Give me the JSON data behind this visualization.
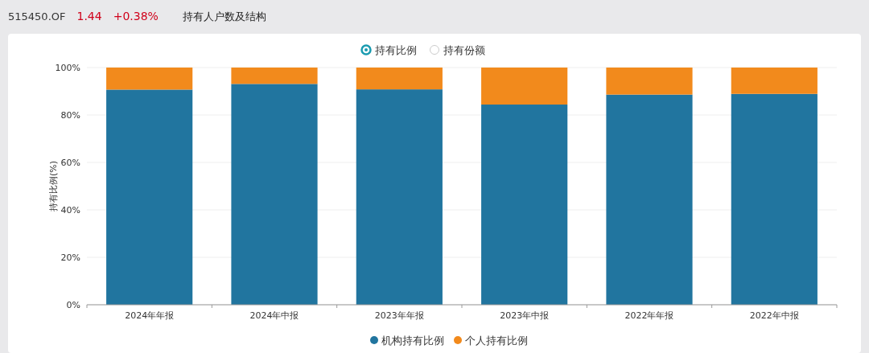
{
  "chart_data": {
    "type": "bar",
    "stacked": true,
    "title": "持有人户数及结构",
    "subtitle": "515450.OF",
    "annotations": [
      "1.44",
      "+0.38%",
      "持有比例",
      "持有份额"
    ],
    "ylabel": "持有比例(%)",
    "categories": [
      "2024年年报",
      "2024年中报",
      "2023年年报",
      "2023年中报",
      "2022年年报",
      "2022年中报"
    ],
    "series": [
      {
        "name": "机构持有比例",
        "color": "#21759f",
        "values": [
          90.7,
          93.1,
          90.8,
          84.4,
          88.6,
          88.9
        ]
      },
      {
        "name": "个人持有比例",
        "color": "#f28a1c",
        "values": [
          9.3,
          6.9,
          9.2,
          15.6,
          11.4,
          11.1
        ]
      }
    ],
    "ylim": [
      0,
      100
    ],
    "yticks": [
      {
        "value": 0,
        "label": "0%"
      },
      {
        "value": 20,
        "label": "20%"
      },
      {
        "value": 40,
        "label": "40%"
      },
      {
        "value": 60,
        "label": "60%"
      },
      {
        "value": 80,
        "label": "80%"
      },
      {
        "value": 100,
        "label": "100%"
      }
    ],
    "grid": "y",
    "legend": "bottom"
  }
}
